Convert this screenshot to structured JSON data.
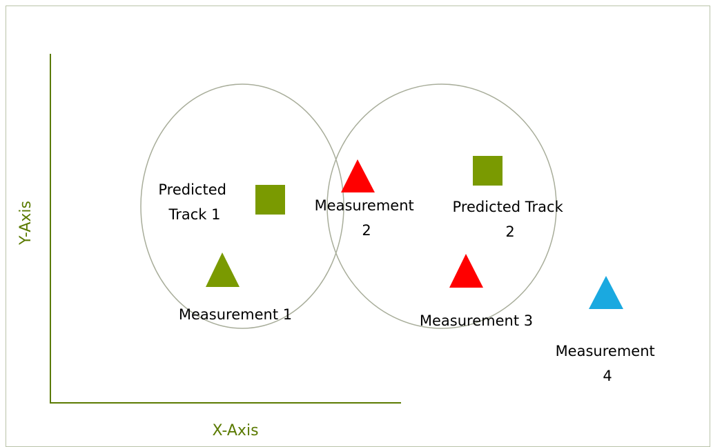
{
  "axes": {
    "x_label": "X-Axis",
    "y_label": "Y-Axis",
    "color": "#5a7a00"
  },
  "labels": {
    "predicted_track_1": [
      "Predicted",
      "Track 1"
    ],
    "predicted_track_2": [
      "Predicted Track",
      "2"
    ],
    "measurement_1": "Measurement  1",
    "measurement_2": [
      "Measurement",
      "2"
    ],
    "measurement_3": "Measurement  3",
    "measurement_4": [
      "Measurement",
      "4"
    ]
  },
  "markers": {
    "predicted_track": {
      "shape": "square",
      "color": "#7a9a01"
    },
    "measurement_1": {
      "shape": "triangle",
      "color": "#7a9a01"
    },
    "measurement_2": {
      "shape": "triangle",
      "color": "#ff0000"
    },
    "measurement_3": {
      "shape": "triangle",
      "color": "#ff0000"
    },
    "measurement_4": {
      "shape": "triangle",
      "color": "#1aa9e0"
    }
  },
  "gates": {
    "stroke_color": "#a8ad9a"
  }
}
